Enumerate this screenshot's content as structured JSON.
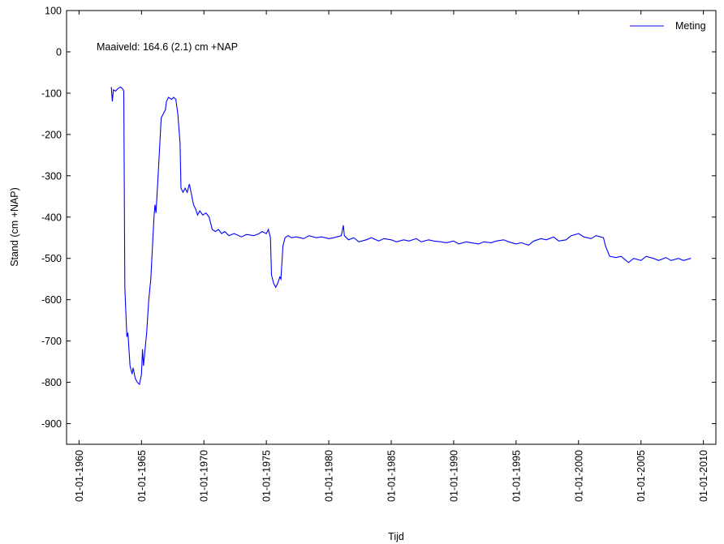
{
  "chart_data": {
    "type": "line",
    "xlabel": "Tijd",
    "ylabel": "Stand (cm +NAP)",
    "annotation": "Maaiveld: 164.6 (2.1) cm +NAP",
    "xlim": [
      "1959-01-01",
      "2011-01-01"
    ],
    "ylim": [
      -950,
      100
    ],
    "x_ticks": [
      "01-01-1960",
      "01-01-1965",
      "01-01-1970",
      "01-01-1975",
      "01-01-1980",
      "01-01-1985",
      "01-01-1990",
      "01-01-1995",
      "01-01-2000",
      "01-01-2005",
      "01-01-2010"
    ],
    "y_ticks": [
      100,
      0,
      -100,
      -200,
      -300,
      -400,
      -500,
      -600,
      -700,
      -800,
      -900
    ],
    "grid": false,
    "legend": {
      "position": "top-right"
    },
    "series": [
      {
        "name": "Meting",
        "color": "#0000ff",
        "points": [
          [
            "1962-08-01",
            -85
          ],
          [
            "1962-09-01",
            -120
          ],
          [
            "1962-10-01",
            -92
          ],
          [
            "1962-12-01",
            -95
          ],
          [
            "1963-02-01",
            -90
          ],
          [
            "1963-03-01",
            -88
          ],
          [
            "1963-05-01",
            -85
          ],
          [
            "1963-07-01",
            -90
          ],
          [
            "1963-08-01",
            -95
          ],
          [
            "1963-09-01",
            -570
          ],
          [
            "1963-11-01",
            -690
          ],
          [
            "1963-12-01",
            -680
          ],
          [
            "1964-02-01",
            -760
          ],
          [
            "1964-04-01",
            -780
          ],
          [
            "1964-05-01",
            -765
          ],
          [
            "1964-07-01",
            -790
          ],
          [
            "1964-09-01",
            -800
          ],
          [
            "1964-11-01",
            -805
          ],
          [
            "1965-01-01",
            -780
          ],
          [
            "1965-02-01",
            -720
          ],
          [
            "1965-03-01",
            -760
          ],
          [
            "1965-06-01",
            -680
          ],
          [
            "1965-08-01",
            -600
          ],
          [
            "1965-10-01",
            -550
          ],
          [
            "1966-01-01",
            -400
          ],
          [
            "1966-02-01",
            -370
          ],
          [
            "1966-03-01",
            -390
          ],
          [
            "1966-05-01",
            -300
          ],
          [
            "1966-08-01",
            -160
          ],
          [
            "1966-10-01",
            -150
          ],
          [
            "1966-12-01",
            -140
          ],
          [
            "1967-01-01",
            -120
          ],
          [
            "1967-03-01",
            -110
          ],
          [
            "1967-06-01",
            -115
          ],
          [
            "1967-08-01",
            -110
          ],
          [
            "1967-10-01",
            -115
          ],
          [
            "1967-12-01",
            -150
          ],
          [
            "1968-02-01",
            -220
          ],
          [
            "1968-03-01",
            -330
          ],
          [
            "1968-05-01",
            -340
          ],
          [
            "1968-07-01",
            -330
          ],
          [
            "1968-09-01",
            -340
          ],
          [
            "1968-11-01",
            -320
          ],
          [
            "1969-01-01",
            -345
          ],
          [
            "1969-03-01",
            -370
          ],
          [
            "1969-05-01",
            -380
          ],
          [
            "1969-07-01",
            -395
          ],
          [
            "1969-09-01",
            -385
          ],
          [
            "1969-12-01",
            -395
          ],
          [
            "1970-03-01",
            -390
          ],
          [
            "1970-06-01",
            -400
          ],
          [
            "1970-09-01",
            -430
          ],
          [
            "1970-12-01",
            -435
          ],
          [
            "1971-03-01",
            -430
          ],
          [
            "1971-06-01",
            -440
          ],
          [
            "1971-09-01",
            -435
          ],
          [
            "1972-01-01",
            -445
          ],
          [
            "1972-06-01",
            -440
          ],
          [
            "1973-01-01",
            -448
          ],
          [
            "1973-06-01",
            -442
          ],
          [
            "1974-01-01",
            -445
          ],
          [
            "1974-06-01",
            -440
          ],
          [
            "1974-09-01",
            -435
          ],
          [
            "1975-01-01",
            -440
          ],
          [
            "1975-03-01",
            -430
          ],
          [
            "1975-05-01",
            -450
          ],
          [
            "1975-06-01",
            -540
          ],
          [
            "1975-08-01",
            -560
          ],
          [
            "1975-10-01",
            -570
          ],
          [
            "1975-12-01",
            -560
          ],
          [
            "1976-02-01",
            -545
          ],
          [
            "1976-03-01",
            -550
          ],
          [
            "1976-05-01",
            -470
          ],
          [
            "1976-07-01",
            -450
          ],
          [
            "1976-10-01",
            -445
          ],
          [
            "1977-01-01",
            -450
          ],
          [
            "1977-06-01",
            -448
          ],
          [
            "1978-01-01",
            -452
          ],
          [
            "1978-06-01",
            -445
          ],
          [
            "1979-01-01",
            -450
          ],
          [
            "1979-06-01",
            -448
          ],
          [
            "1980-01-01",
            -452
          ],
          [
            "1980-06-01",
            -450
          ],
          [
            "1981-01-01",
            -445
          ],
          [
            "1981-03-01",
            -420
          ],
          [
            "1981-04-01",
            -445
          ],
          [
            "1981-08-01",
            -455
          ],
          [
            "1982-01-01",
            -450
          ],
          [
            "1982-06-01",
            -460
          ],
          [
            "1983-01-01",
            -455
          ],
          [
            "1983-06-01",
            -450
          ],
          [
            "1984-01-01",
            -458
          ],
          [
            "1984-06-01",
            -452
          ],
          [
            "1985-01-01",
            -455
          ],
          [
            "1985-06-01",
            -460
          ],
          [
            "1986-01-01",
            -455
          ],
          [
            "1986-06-01",
            -458
          ],
          [
            "1987-01-01",
            -452
          ],
          [
            "1987-06-01",
            -460
          ],
          [
            "1988-01-01",
            -455
          ],
          [
            "1988-06-01",
            -458
          ],
          [
            "1989-01-01",
            -460
          ],
          [
            "1989-06-01",
            -462
          ],
          [
            "1990-01-01",
            -458
          ],
          [
            "1990-06-01",
            -465
          ],
          [
            "1991-01-01",
            -460
          ],
          [
            "1991-06-01",
            -462
          ],
          [
            "1992-01-01",
            -465
          ],
          [
            "1992-06-01",
            -460
          ],
          [
            "1993-01-01",
            -462
          ],
          [
            "1993-06-01",
            -458
          ],
          [
            "1994-01-01",
            -455
          ],
          [
            "1994-06-01",
            -460
          ],
          [
            "1995-01-01",
            -465
          ],
          [
            "1995-06-01",
            -462
          ],
          [
            "1996-01-01",
            -468
          ],
          [
            "1996-06-01",
            -458
          ],
          [
            "1997-01-01",
            -452
          ],
          [
            "1997-06-01",
            -455
          ],
          [
            "1998-01-01",
            -448
          ],
          [
            "1998-06-01",
            -458
          ],
          [
            "1999-01-01",
            -455
          ],
          [
            "1999-06-01",
            -445
          ],
          [
            "2000-01-01",
            -440
          ],
          [
            "2000-06-01",
            -448
          ],
          [
            "2001-01-01",
            -452
          ],
          [
            "2001-06-01",
            -445
          ],
          [
            "2002-01-01",
            -450
          ],
          [
            "2002-03-01",
            -470
          ],
          [
            "2002-07-01",
            -495
          ],
          [
            "2003-01-01",
            -498
          ],
          [
            "2003-06-01",
            -495
          ],
          [
            "2004-01-01",
            -510
          ],
          [
            "2004-06-01",
            -500
          ],
          [
            "2005-01-01",
            -505
          ],
          [
            "2005-06-01",
            -495
          ],
          [
            "2006-01-01",
            -500
          ],
          [
            "2006-06-01",
            -505
          ],
          [
            "2007-01-01",
            -498
          ],
          [
            "2007-06-01",
            -505
          ],
          [
            "2008-01-01",
            -500
          ],
          [
            "2008-06-01",
            -505
          ],
          [
            "2009-01-01",
            -500
          ]
        ]
      }
    ]
  }
}
